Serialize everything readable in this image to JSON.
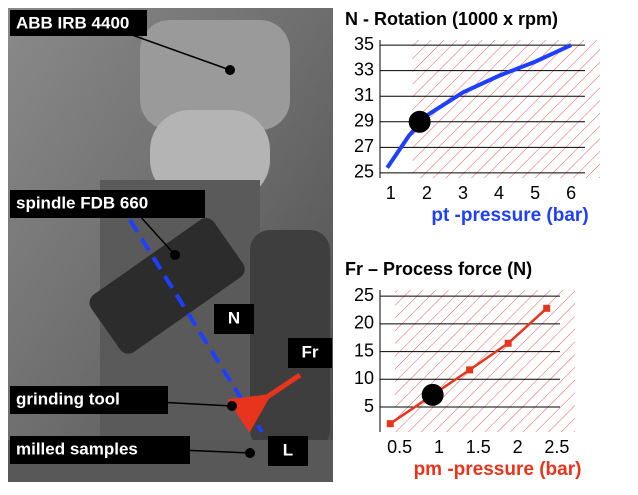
{
  "chart_data": [
    {
      "type": "line",
      "title": "N - Rotation (1000 x rpm)",
      "x_label": "pt -pressure (bar)",
      "label_color": "#1f3fff",
      "xlim": [
        0.7,
        6.8
      ],
      "ylim": [
        24.6,
        35.4
      ],
      "xticks": [
        1,
        2,
        3,
        4,
        5,
        6
      ],
      "yticks": [
        25,
        27,
        29,
        31,
        33,
        35
      ],
      "grid": true,
      "series": [
        {
          "color": "#1f3fff",
          "markers": false,
          "x": [
            0.9,
            1.5,
            2,
            3,
            4,
            5,
            6
          ],
          "values": [
            25.4,
            27.9,
            29.5,
            31.3,
            32.6,
            33.7,
            35
          ]
        }
      ],
      "highlight": {
        "x": 1.8,
        "value": 29
      },
      "region": {
        "x0": 1.6,
        "color": "#e06060"
      }
    },
    {
      "type": "line",
      "title": "Fr – Process force (N)",
      "x_label": "pm -pressure (bar)",
      "label_color": "#e8341c",
      "xlim": [
        0.25,
        2.73
      ],
      "ylim": [
        0.5,
        26.1
      ],
      "xticks": [
        0.5,
        1,
        1.5,
        2,
        2.5
      ],
      "yticks": [
        5,
        10,
        15,
        20,
        25
      ],
      "grid": true,
      "series": [
        {
          "color": "#e8341c",
          "markers": true,
          "x": [
            0.38,
            1.39,
            1.88,
            2.37
          ],
          "values": [
            2,
            11.7,
            16.5,
            22.8
          ]
        }
      ],
      "highlight": {
        "x": 0.92,
        "value": 7.2
      },
      "region": {
        "x0": 0.44,
        "color": "#e06060"
      }
    }
  ],
  "photo": {
    "labels": [
      "ABB IRB 4400",
      "spindle FDB 660",
      "grinding tool",
      "milled samples",
      "N",
      "Fr",
      "L"
    ]
  }
}
